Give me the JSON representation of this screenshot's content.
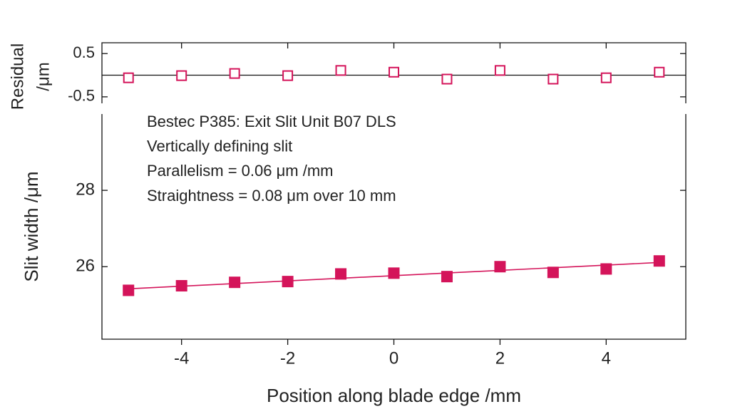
{
  "chart_data": [
    {
      "type": "scatter",
      "ylabel": [
        "Residual",
        "/μm"
      ],
      "x": [
        -5,
        -4,
        -3,
        -2,
        -1,
        0,
        1,
        2,
        3,
        4,
        5
      ],
      "series": [
        {
          "values": [
            -0.06,
            -0.01,
            0.04,
            -0.01,
            0.11,
            0.07,
            -0.09,
            0.11,
            -0.09,
            -0.06,
            0.07
          ],
          "color": "#d4145a",
          "marker": "square-open"
        }
      ],
      "reference_line": 0,
      "xlim": [
        -5.5,
        5.5
      ],
      "xticks": [
        -4,
        -2,
        0,
        2,
        4
      ],
      "ylim": [
        -0.65,
        0.75
      ],
      "yticks": [
        0.5,
        -0.5
      ]
    },
    {
      "type": "scatter",
      "xlabel": "Position along blade edge /mm",
      "ylabel": "Slit width /μm",
      "annotations": [
        "Bestec P385: Exit Slit Unit B07 DLS",
        "Vertically defining slit",
        "Parallelism =  0.06 μm /mm",
        "Straightness =  0.08 μm over 10 mm"
      ],
      "x": [
        -5,
        -4,
        -3,
        -2,
        -1,
        0,
        1,
        2,
        3,
        4,
        5
      ],
      "series": [
        {
          "values": [
            25.38,
            25.5,
            25.59,
            25.61,
            25.81,
            25.83,
            25.74,
            26.0,
            25.85,
            25.94,
            26.15
          ],
          "color": "#d4145a",
          "marker": "square-filled"
        }
      ],
      "fit": {
        "x": [
          -5,
          5
        ],
        "values": [
          25.42,
          26.11
        ],
        "color": "#d4145a"
      },
      "xlim": [
        -5.5,
        5.5
      ],
      "xticks": [
        -4,
        -2,
        0,
        2,
        4
      ],
      "ylim": [
        24.1,
        30
      ],
      "yticks": [
        26,
        28
      ]
    }
  ]
}
